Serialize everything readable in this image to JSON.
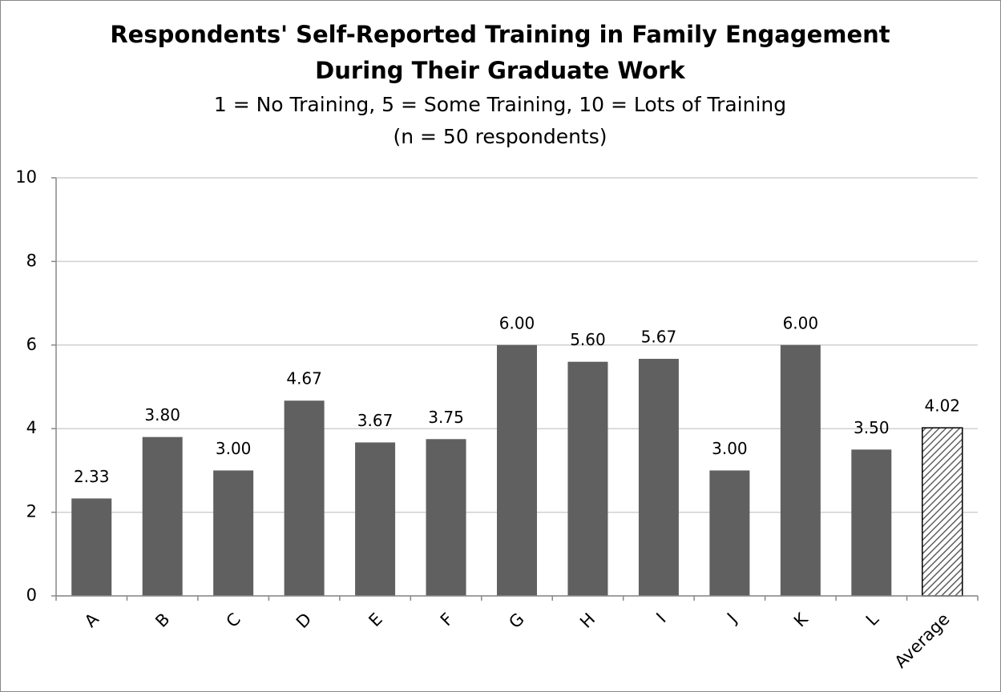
{
  "chart_data": {
    "type": "bar",
    "title": [
      "Respondents' Self-Reported Training in Family Engagement",
      "During Their Graduate Work"
    ],
    "subtitle": [
      "1 = No Training, 5 = Some Training, 10 = Lots of Training",
      "(n = 50 respondents)"
    ],
    "categories": [
      "A",
      "B",
      "C",
      "D",
      "E",
      "F",
      "G",
      "H",
      "I",
      "J",
      "K",
      "L",
      "Average"
    ],
    "values": [
      2.33,
      3.8,
      3.0,
      4.67,
      3.67,
      3.75,
      6.0,
      5.6,
      5.67,
      3.0,
      6.0,
      3.5,
      4.02
    ],
    "value_labels": [
      "2.33",
      "3.80",
      "3.00",
      "4.67",
      "3.67",
      "3.75",
      "6.00",
      "5.60",
      "5.67",
      "3.00",
      "6.00",
      "3.50",
      "4.02"
    ],
    "color": "#606060",
    "bar_styles": [
      "solid",
      "solid",
      "solid",
      "solid",
      "solid",
      "solid",
      "solid",
      "solid",
      "solid",
      "solid",
      "solid",
      "solid",
      "hatched"
    ],
    "ylim": [
      0,
      10
    ],
    "yticks": [
      0,
      2,
      4,
      6,
      8,
      10
    ],
    "grid": true
  }
}
